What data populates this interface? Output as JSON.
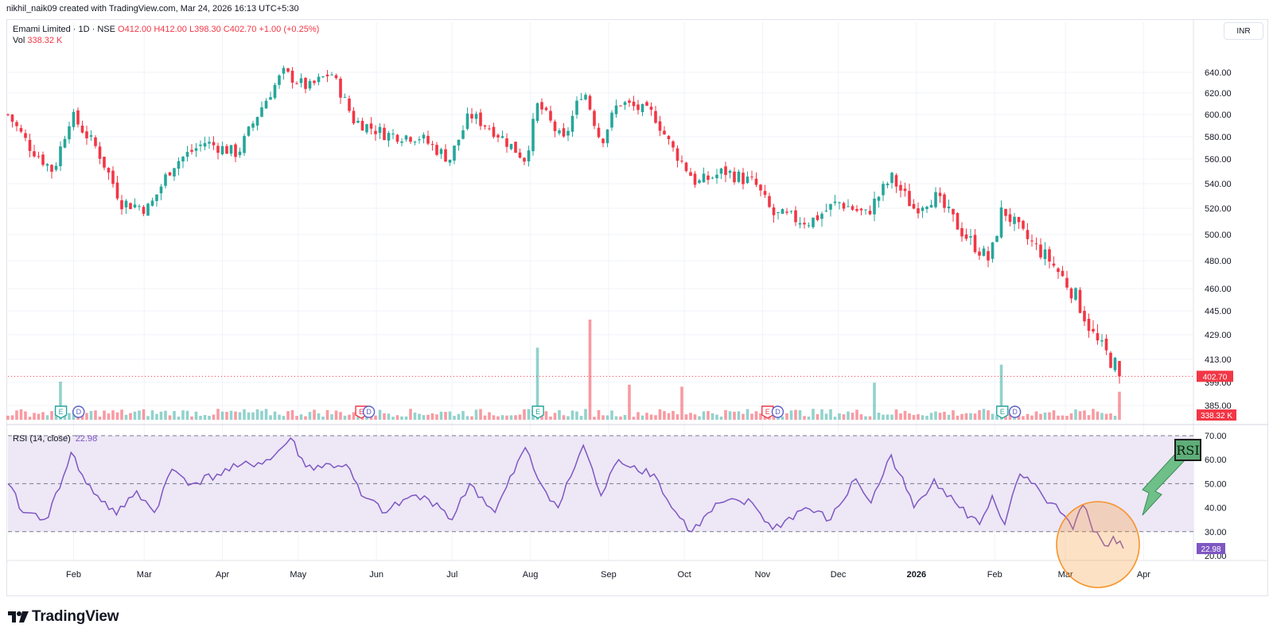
{
  "header": {
    "credit": "nikhil_naik09 created with TradingView.com, Mar 24, 2026 16:13 UTC+5:30"
  },
  "legend": {
    "symbol": "Emami Limited · 1D · NSE",
    "open": "O412.00",
    "high": "H412.00",
    "low": "L398.30",
    "close": "C402.70",
    "change": "+1.00 (+0.25%)",
    "vol_label": "Vol",
    "vol_value": "338.32 K"
  },
  "currency_button": "INR",
  "rsi_legend": {
    "label": "RSI (14, close)",
    "value": "22.98"
  },
  "brand": "TradingView",
  "annotation": {
    "callout": "RSI"
  },
  "colors": {
    "up": "#26a69a",
    "down": "#f23645",
    "rsi": "#7e57c2",
    "rsi_band": "#ede7f6",
    "highlight": "#f7932a"
  },
  "chart_data": [
    {
      "type": "candlestick",
      "price_axis_ticks": [
        640,
        620,
        600,
        580,
        560,
        540,
        520,
        500,
        480,
        460,
        445,
        429,
        413,
        399,
        385
      ],
      "last_price_label": "402.70",
      "volume_label": "338.32 K",
      "time_axis_labels": [
        "Feb",
        "Mar",
        "Apr",
        "May",
        "Jun",
        "Jul",
        "Aug",
        "Sep",
        "Oct",
        "Nov",
        "Dec",
        "2026",
        "Feb",
        "Mar",
        "Apr"
      ],
      "price_path_anchors": [
        {
          "x": "2025-01-06",
          "y": 600
        },
        {
          "x": "2025-01-15",
          "y": 570
        },
        {
          "x": "2025-01-24",
          "y": 550
        },
        {
          "x": "2025-01-31",
          "y": 600
        },
        {
          "x": "2025-02-10",
          "y": 570
        },
        {
          "x": "2025-02-20",
          "y": 525
        },
        {
          "x": "2025-03-03",
          "y": 520
        },
        {
          "x": "2025-03-12",
          "y": 555
        },
        {
          "x": "2025-03-25",
          "y": 575
        },
        {
          "x": "2025-04-07",
          "y": 565
        },
        {
          "x": "2025-04-16",
          "y": 605
        },
        {
          "x": "2025-04-25",
          "y": 640
        },
        {
          "x": "2025-05-05",
          "y": 625
        },
        {
          "x": "2025-05-14",
          "y": 640
        },
        {
          "x": "2025-05-23",
          "y": 595
        },
        {
          "x": "2025-06-05",
          "y": 582
        },
        {
          "x": "2025-06-18",
          "y": 580
        },
        {
          "x": "2025-06-30",
          "y": 560
        },
        {
          "x": "2025-07-08",
          "y": 600
        },
        {
          "x": "2025-07-18",
          "y": 585
        },
        {
          "x": "2025-07-30",
          "y": 560
        },
        {
          "x": "2025-08-04",
          "y": 610
        },
        {
          "x": "2025-08-14",
          "y": 575
        },
        {
          "x": "2025-08-22",
          "y": 625
        },
        {
          "x": "2025-08-29",
          "y": 575
        },
        {
          "x": "2025-09-05",
          "y": 612
        },
        {
          "x": "2025-09-19",
          "y": 600
        },
        {
          "x": "2025-09-26",
          "y": 570
        },
        {
          "x": "2025-10-06",
          "y": 540
        },
        {
          "x": "2025-10-17",
          "y": 550
        },
        {
          "x": "2025-10-29",
          "y": 540
        },
        {
          "x": "2025-11-05",
          "y": 515
        },
        {
          "x": "2025-11-20",
          "y": 510
        },
        {
          "x": "2025-12-01",
          "y": 525
        },
        {
          "x": "2025-12-12",
          "y": 515
        },
        {
          "x": "2025-12-22",
          "y": 545
        },
        {
          "x": "2025-12-31",
          "y": 520
        },
        {
          "x": "2026-01-08",
          "y": 530
        },
        {
          "x": "2026-01-20",
          "y": 500
        },
        {
          "x": "2026-01-30",
          "y": 480
        },
        {
          "x": "2026-02-04",
          "y": 520
        },
        {
          "x": "2026-02-12",
          "y": 500
        },
        {
          "x": "2026-02-23",
          "y": 480
        },
        {
          "x": "2026-03-05",
          "y": 455
        },
        {
          "x": "2026-03-13",
          "y": 425
        },
        {
          "x": "2026-03-24",
          "y": 402.7
        }
      ],
      "volume_spikes": [
        {
          "x": "2025-01-27",
          "vol_rel": 0.38
        },
        {
          "x": "2025-08-04",
          "vol_rel": 0.72
        },
        {
          "x": "2025-08-25",
          "vol_rel": 1.0
        },
        {
          "x": "2025-09-10",
          "vol_rel": 0.35
        },
        {
          "x": "2025-09-30",
          "vol_rel": 0.33
        },
        {
          "x": "2025-12-15",
          "vol_rel": 0.37
        },
        {
          "x": "2026-02-04",
          "vol_rel": 0.55
        },
        {
          "x": "2026-03-23",
          "vol_rel": 0.28
        }
      ],
      "event_markers": [
        {
          "x": "2025-01-27",
          "label": "E",
          "kind": "earnings-up"
        },
        {
          "x": "2025-02-03",
          "label": "D",
          "kind": "dividend"
        },
        {
          "x": "2025-05-26",
          "label": "E",
          "kind": "earnings-down"
        },
        {
          "x": "2025-05-29",
          "label": "D",
          "kind": "dividend"
        },
        {
          "x": "2025-08-04",
          "label": "E",
          "kind": "earnings-up"
        },
        {
          "x": "2025-11-03",
          "label": "E",
          "kind": "earnings-down"
        },
        {
          "x": "2025-11-07",
          "label": "D",
          "kind": "dividend"
        },
        {
          "x": "2026-02-04",
          "label": "E",
          "kind": "earnings-up"
        },
        {
          "x": "2026-02-09",
          "label": "D",
          "kind": "dividend"
        }
      ]
    },
    {
      "type": "line",
      "name": "RSI (14, close)",
      "y_axis_ticks": [
        70,
        60,
        50,
        40,
        30,
        20
      ],
      "bands": [
        70,
        50,
        30
      ],
      "ylim": [
        20,
        70
      ],
      "last_value_label": "22.98",
      "points": [
        {
          "x": "2025-01-06",
          "y": 50
        },
        {
          "x": "2025-01-12",
          "y": 38
        },
        {
          "x": "2025-01-22",
          "y": 36
        },
        {
          "x": "2025-01-31",
          "y": 63
        },
        {
          "x": "2025-02-06",
          "y": 50
        },
        {
          "x": "2025-02-18",
          "y": 37
        },
        {
          "x": "2025-02-26",
          "y": 47
        },
        {
          "x": "2025-03-05",
          "y": 38
        },
        {
          "x": "2025-03-12",
          "y": 56
        },
        {
          "x": "2025-03-20",
          "y": 50
        },
        {
          "x": "2025-04-07",
          "y": 57
        },
        {
          "x": "2025-04-20",
          "y": 60
        },
        {
          "x": "2025-04-28",
          "y": 69
        },
        {
          "x": "2025-05-04",
          "y": 57
        },
        {
          "x": "2025-05-20",
          "y": 58
        },
        {
          "x": "2025-05-26",
          "y": 45
        },
        {
          "x": "2025-06-05",
          "y": 38
        },
        {
          "x": "2025-06-15",
          "y": 45
        },
        {
          "x": "2025-06-25",
          "y": 42
        },
        {
          "x": "2025-07-01",
          "y": 35
        },
        {
          "x": "2025-07-08",
          "y": 50
        },
        {
          "x": "2025-07-18",
          "y": 38
        },
        {
          "x": "2025-07-30",
          "y": 65
        },
        {
          "x": "2025-08-04",
          "y": 52
        },
        {
          "x": "2025-08-12",
          "y": 40
        },
        {
          "x": "2025-08-22",
          "y": 66
        },
        {
          "x": "2025-08-29",
          "y": 45
        },
        {
          "x": "2025-09-05",
          "y": 60
        },
        {
          "x": "2025-09-19",
          "y": 54
        },
        {
          "x": "2025-09-26",
          "y": 40
        },
        {
          "x": "2025-10-04",
          "y": 30
        },
        {
          "x": "2025-10-15",
          "y": 42
        },
        {
          "x": "2025-10-28",
          "y": 42
        },
        {
          "x": "2025-11-05",
          "y": 31
        },
        {
          "x": "2025-11-18",
          "y": 40
        },
        {
          "x": "2025-11-28",
          "y": 35
        },
        {
          "x": "2025-12-08",
          "y": 52
        },
        {
          "x": "2025-12-14",
          "y": 42
        },
        {
          "x": "2025-12-22",
          "y": 62
        },
        {
          "x": "2025-12-31",
          "y": 40
        },
        {
          "x": "2026-01-08",
          "y": 52
        },
        {
          "x": "2026-01-18",
          "y": 40
        },
        {
          "x": "2026-01-26",
          "y": 33
        },
        {
          "x": "2026-01-31",
          "y": 45
        },
        {
          "x": "2026-02-05",
          "y": 33
        },
        {
          "x": "2026-02-11",
          "y": 54
        },
        {
          "x": "2026-02-20",
          "y": 45
        },
        {
          "x": "2026-02-27",
          "y": 38
        },
        {
          "x": "2026-03-04",
          "y": 31
        },
        {
          "x": "2026-03-08",
          "y": 41
        },
        {
          "x": "2026-03-12",
          "y": 30
        },
        {
          "x": "2026-03-18",
          "y": 24
        },
        {
          "x": "2026-03-20",
          "y": 28
        },
        {
          "x": "2026-03-24",
          "y": 22.98
        }
      ]
    }
  ]
}
